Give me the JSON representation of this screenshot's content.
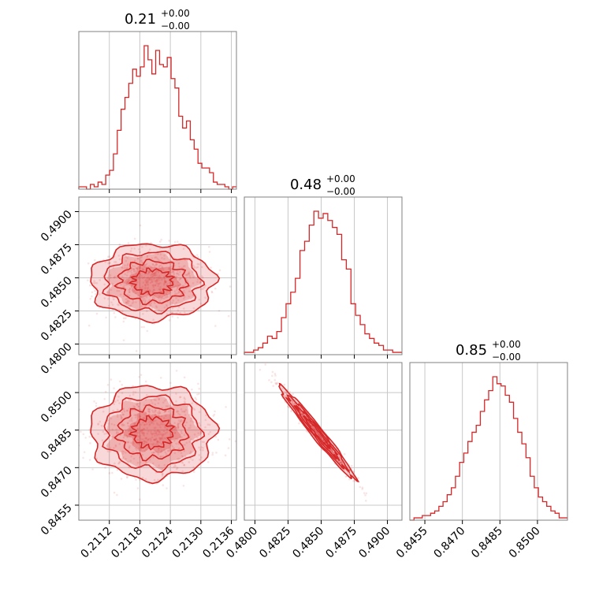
{
  "chart_data": {
    "type": "corner",
    "color": "#d62728",
    "grid": true,
    "parameters": [
      {
        "title_value": "0.21",
        "title_plus": "+0.00",
        "title_minus": "−0.00",
        "range": [
          0.2106,
          0.2137
        ],
        "ticks": [
          "0.2112",
          "0.2118",
          "0.2124",
          "0.2130",
          "0.2136"
        ],
        "histogram": {
          "start": 0.2106,
          "end": 0.2137,
          "counts": [
            1,
            1,
            0,
            2,
            1,
            3,
            2,
            6,
            8,
            15,
            25,
            34,
            39,
            45,
            51,
            48,
            52,
            61,
            55,
            49,
            59,
            53,
            52,
            56,
            47,
            43,
            31,
            26,
            29,
            21,
            17,
            11,
            9,
            9,
            7,
            3,
            2,
            2,
            1,
            0,
            1
          ]
        }
      },
      {
        "title_value": "0.48",
        "title_plus": "+0.00",
        "title_minus": "−0.00",
        "range": [
          0.4792,
          0.4911
        ],
        "ticks": [
          "0.4800",
          "0.4825",
          "0.4850",
          "0.4875",
          "0.4900"
        ],
        "histogram": {
          "start": 0.4792,
          "end": 0.4911,
          "counts": [
            1,
            1,
            2,
            3,
            5,
            8,
            7,
            10,
            16,
            22,
            27,
            33,
            45,
            49,
            56,
            62,
            59,
            61,
            58,
            55,
            52,
            41,
            37,
            22,
            17,
            13,
            9,
            7,
            5,
            4,
            2,
            2,
            1,
            1
          ]
        }
      },
      {
        "title_value": "0.85",
        "title_plus": "+0.00",
        "title_minus": "−0.00",
        "range": [
          0.8449,
          0.8512
        ],
        "ticks": [
          "0.8455",
          "0.8470",
          "0.8485",
          "0.8500"
        ],
        "histogram": {
          "start": 0.8449,
          "end": 0.8512,
          "counts": [
            0,
            1,
            1,
            2,
            2,
            3,
            4,
            6,
            8,
            11,
            14,
            19,
            25,
            29,
            34,
            38,
            41,
            47,
            52,
            56,
            62,
            59,
            58,
            54,
            51,
            44,
            38,
            33,
            27,
            19,
            14,
            10,
            8,
            6,
            4,
            3,
            1,
            1
          ]
        }
      }
    ],
    "pairs": [
      {
        "row": 1,
        "col": 0,
        "center": [
          0.21205,
          0.4847
        ],
        "spread": [
          0.00055,
          0.0013
        ],
        "corr": 0.0
      },
      {
        "row": 2,
        "col": 0,
        "center": [
          0.21205,
          0.8484
        ],
        "spread": [
          0.00055,
          0.00085
        ],
        "corr": 0.0
      },
      {
        "row": 2,
        "col": 1,
        "center": [
          0.4847,
          0.8484
        ],
        "spread": [
          0.0013,
          0.00085
        ],
        "corr": -0.98
      }
    ]
  }
}
